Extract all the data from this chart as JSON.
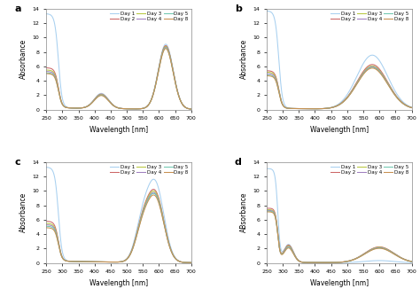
{
  "panels": [
    "a",
    "b",
    "c",
    "d"
  ],
  "xlim": [
    250,
    700
  ],
  "ylim_abc": [
    0,
    14
  ],
  "ylim_d": [
    0,
    14
  ],
  "xlabel": "Wavelength [nm]",
  "ylabel_abc": "Absorbance",
  "ylabel_d": "ABsorbance",
  "xticks": [
    250,
    300,
    350,
    400,
    450,
    500,
    550,
    600,
    650,
    700
  ],
  "yticks": [
    0,
    2,
    4,
    6,
    8,
    10,
    12,
    14
  ],
  "legend_entries": [
    "Day 1",
    "Day 2",
    "Day 3",
    "Day 4",
    "Day 5",
    "Day 8"
  ],
  "line_colors": [
    "#a8d0f0",
    "#cc6666",
    "#b8c840",
    "#a080c0",
    "#70c8b0",
    "#c89050"
  ],
  "background_color": "#f2f2f2"
}
